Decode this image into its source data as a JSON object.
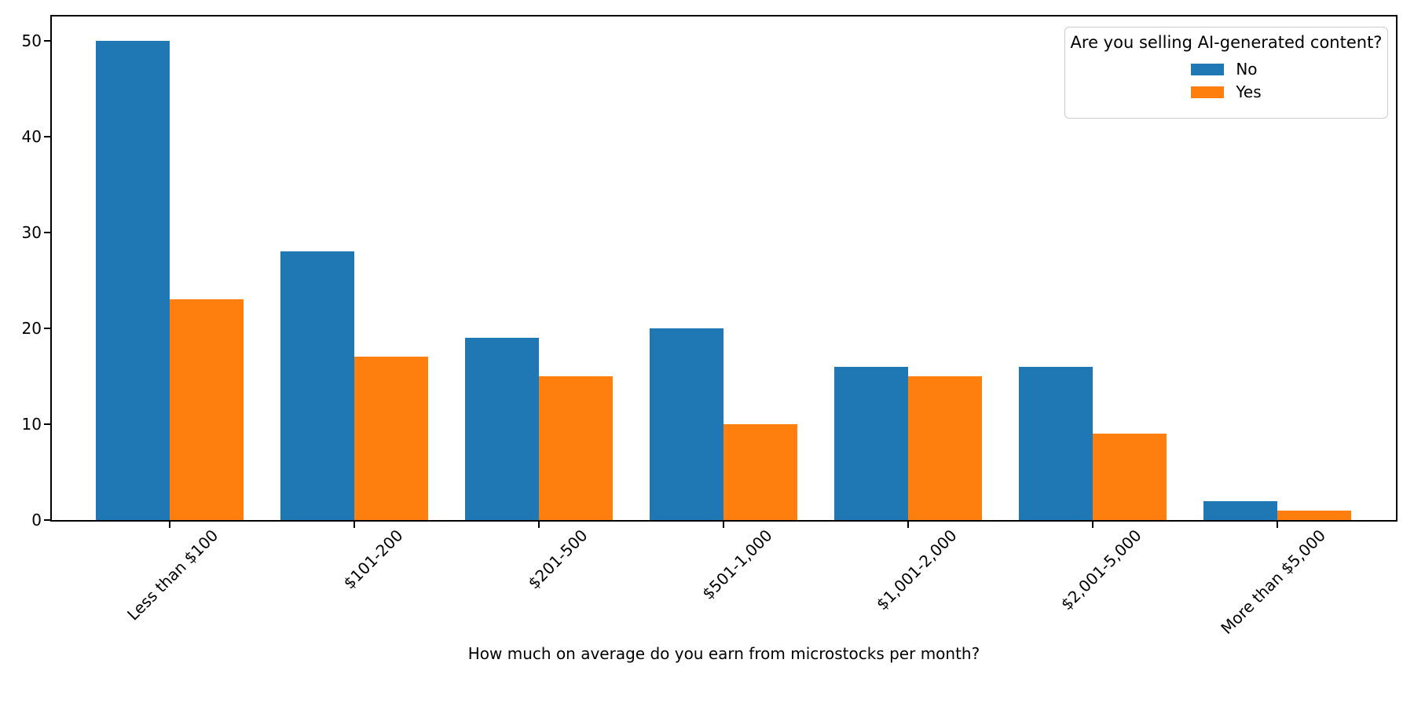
{
  "chart_data": {
    "type": "bar",
    "title": "",
    "xlabel": "How much on average do you earn from microstocks per month?",
    "ylabel": "",
    "categories": [
      "Less than $100",
      "$101-200",
      "$201-500",
      "$501-1,000",
      "$1,001-2,000",
      "$2,001-5,000",
      "More than $5,000"
    ],
    "series": [
      {
        "name": "No",
        "color": "#1f77b4",
        "values": [
          50,
          28,
          19,
          20,
          16,
          16,
          2
        ]
      },
      {
        "name": "Yes",
        "color": "#ff7f0e",
        "values": [
          23,
          17,
          15,
          10,
          15,
          9,
          1
        ]
      }
    ],
    "legend": {
      "title": "Are you selling AI-generated content?",
      "position": "upper right"
    },
    "yticks": [
      0,
      10,
      20,
      30,
      40,
      50
    ],
    "ylim": [
      0,
      52.5
    ],
    "grid": false,
    "axis_color": "#000000",
    "background_color": "#ffffff"
  }
}
